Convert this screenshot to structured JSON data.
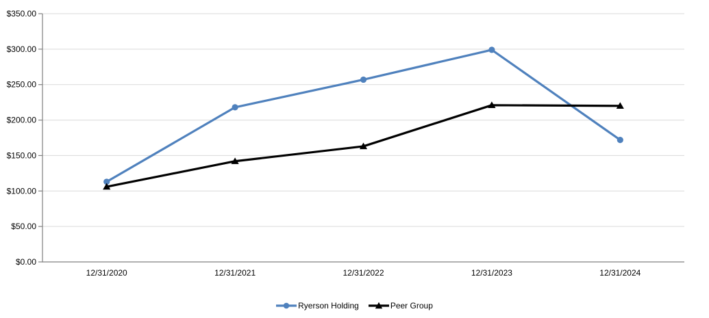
{
  "chart_data": {
    "type": "line",
    "title": "",
    "categories": [
      "12/31/2020",
      "12/31/2021",
      "12/31/2022",
      "12/31/2023",
      "12/31/2024"
    ],
    "series": [
      {
        "name": "Ryerson Holding",
        "values": [
          113,
          218,
          257,
          299,
          172
        ],
        "color": "#4F81BD",
        "marker": "circle"
      },
      {
        "name": "Peer Group",
        "values": [
          106,
          142,
          163,
          221,
          220
        ],
        "color": "#000000",
        "marker": "triangle"
      }
    ],
    "xlabel": "",
    "ylabel": "",
    "ylim": [
      0,
      350
    ],
    "y_tick_step": 50,
    "y_tick_labels": [
      "$0.00",
      "$50.00",
      "$100.00",
      "$150.00",
      "$200.00",
      "$250.00",
      "$300.00",
      "$350.00"
    ],
    "grid": true,
    "legend_position": "bottom"
  },
  "colors": {
    "background": "#FFFFFF",
    "gridline": "#D9D9D9",
    "axis": "#808080",
    "tick_text": "#000000",
    "legend_text": "#000000"
  }
}
